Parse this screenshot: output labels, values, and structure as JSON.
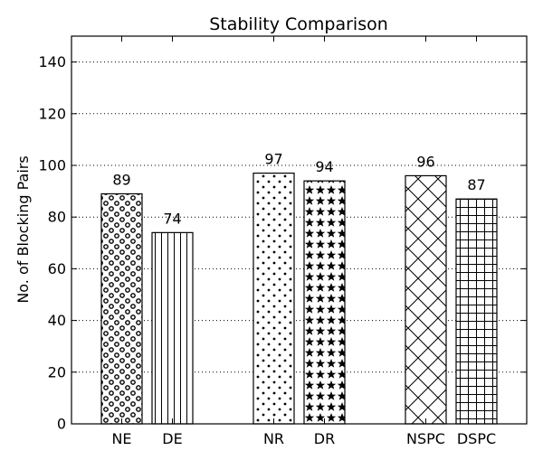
{
  "chart_data": {
    "type": "bar",
    "title": "Stability Comparison",
    "xlabel": "",
    "ylabel": "No. of Blocking Pairs",
    "ylim": [
      0,
      150
    ],
    "yticks": [
      0,
      20,
      40,
      60,
      80,
      100,
      120,
      140
    ],
    "grid": "y-dotted",
    "categories": [
      "NE",
      "DE",
      "NR",
      "DR",
      "NSPC",
      "DSPC"
    ],
    "values": [
      89,
      74,
      97,
      94,
      96,
      87
    ],
    "data_labels": [
      "89",
      "74",
      "97",
      "94",
      "96",
      "87"
    ],
    "groups": [
      [
        "NE",
        "DE"
      ],
      [
        "NR",
        "DR"
      ],
      [
        "NSPC",
        "DSPC"
      ]
    ],
    "hatches": [
      "circles",
      "vertical-lines",
      "dots",
      "stars",
      "crosshatch-diagonal",
      "grid"
    ]
  }
}
